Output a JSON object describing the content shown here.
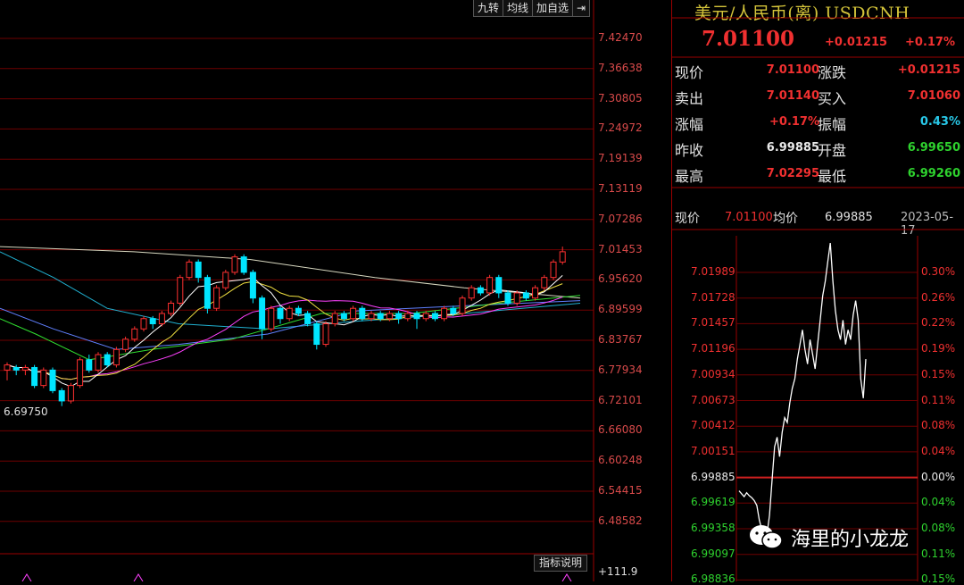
{
  "toolbar": {
    "items": [
      "九转",
      "均线",
      "加自选",
      "⇥"
    ]
  },
  "kline": {
    "y_ticks": [
      "7.42470",
      "7.36638",
      "7.30805",
      "7.24972",
      "7.19139",
      "7.13119",
      "7.07286",
      "7.01453",
      "6.95620",
      "6.89599",
      "6.83767",
      "6.77934",
      "6.72101",
      "6.66080",
      "6.60248",
      "6.54415",
      "6.48582"
    ],
    "low_label": "6.69750",
    "indicator_button": "指标说明",
    "indicator_value": "+111.9",
    "colors": {
      "up": "#ff3030",
      "down": "#00e5ff",
      "ma5": "#ffffff",
      "ma10": "#f0e040",
      "ma20": "#ff40ff",
      "ma30": "#30e030",
      "ma60": "#6080ff",
      "ma120": "#20b0d0",
      "ma250": "#d8d8c0"
    },
    "chart_data": {
      "type": "candlestick",
      "candles": [
        [
          6.78,
          6.79,
          6.76,
          6.795
        ],
        [
          6.785,
          6.78,
          6.77,
          6.79
        ],
        [
          6.78,
          6.785,
          6.77,
          6.79
        ],
        [
          6.785,
          6.75,
          6.745,
          6.79
        ],
        [
          6.75,
          6.78,
          6.745,
          6.785
        ],
        [
          6.78,
          6.74,
          6.735,
          6.785
        ],
        [
          6.74,
          6.72,
          6.71,
          6.745
        ],
        [
          6.72,
          6.75,
          6.715,
          6.755
        ],
        [
          6.75,
          6.8,
          6.745,
          6.805
        ],
        [
          6.8,
          6.78,
          6.775,
          6.81
        ],
        [
          6.78,
          6.81,
          6.775,
          6.815
        ],
        [
          6.81,
          6.79,
          6.785,
          6.815
        ],
        [
          6.79,
          6.82,
          6.785,
          6.825
        ],
        [
          6.82,
          6.84,
          6.815,
          6.845
        ],
        [
          6.84,
          6.86,
          6.835,
          6.865
        ],
        [
          6.86,
          6.88,
          6.855,
          6.885
        ],
        [
          6.88,
          6.87,
          6.86,
          6.885
        ],
        [
          6.87,
          6.89,
          6.865,
          6.895
        ],
        [
          6.89,
          6.91,
          6.885,
          6.915
        ],
        [
          6.91,
          6.96,
          6.905,
          6.965
        ],
        [
          6.96,
          6.99,
          6.955,
          6.995
        ],
        [
          6.99,
          6.96,
          6.95,
          6.995
        ],
        [
          6.96,
          6.9,
          6.89,
          6.965
        ],
        [
          6.9,
          6.94,
          6.895,
          6.945
        ],
        [
          6.94,
          6.97,
          6.935,
          6.975
        ],
        [
          6.97,
          7.0,
          6.965,
          7.005
        ],
        [
          7.0,
          6.97,
          6.965,
          7.005
        ],
        [
          6.97,
          6.92,
          6.91,
          6.975
        ],
        [
          6.92,
          6.86,
          6.84,
          6.925
        ],
        [
          6.86,
          6.9,
          6.855,
          6.905
        ],
        [
          6.9,
          6.88,
          6.87,
          6.905
        ],
        [
          6.88,
          6.9,
          6.875,
          6.905
        ],
        [
          6.9,
          6.89,
          6.885,
          6.905
        ],
        [
          6.89,
          6.87,
          6.865,
          6.895
        ],
        [
          6.87,
          6.83,
          6.82,
          6.875
        ],
        [
          6.83,
          6.87,
          6.825,
          6.875
        ],
        [
          6.87,
          6.89,
          6.865,
          6.895
        ],
        [
          6.89,
          6.88,
          6.875,
          6.895
        ],
        [
          6.88,
          6.9,
          6.875,
          6.905
        ],
        [
          6.9,
          6.88,
          6.875,
          6.905
        ],
        [
          6.88,
          6.89,
          6.875,
          6.895
        ],
        [
          6.89,
          6.88,
          6.875,
          6.895
        ],
        [
          6.88,
          6.89,
          6.875,
          6.895
        ],
        [
          6.89,
          6.88,
          6.87,
          6.895
        ],
        [
          6.88,
          6.89,
          6.875,
          6.895
        ],
        [
          6.89,
          6.88,
          6.86,
          6.895
        ],
        [
          6.88,
          6.89,
          6.875,
          6.895
        ],
        [
          6.89,
          6.88,
          6.875,
          6.895
        ],
        [
          6.88,
          6.9,
          6.875,
          6.905
        ],
        [
          6.9,
          6.89,
          6.885,
          6.905
        ],
        [
          6.89,
          6.92,
          6.885,
          6.925
        ],
        [
          6.92,
          6.94,
          6.915,
          6.945
        ],
        [
          6.94,
          6.93,
          6.925,
          6.945
        ],
        [
          6.93,
          6.96,
          6.925,
          6.965
        ],
        [
          6.96,
          6.93,
          6.92,
          6.965
        ],
        [
          6.93,
          6.91,
          6.905,
          6.935
        ],
        [
          6.91,
          6.93,
          6.905,
          6.935
        ],
        [
          6.93,
          6.92,
          6.915,
          6.935
        ],
        [
          6.92,
          6.94,
          6.915,
          6.945
        ],
        [
          6.94,
          6.96,
          6.935,
          6.965
        ],
        [
          6.96,
          6.99,
          6.955,
          6.995
        ],
        [
          6.99,
          7.01,
          6.985,
          7.02
        ]
      ],
      "note": "OHLC values [open, close, low, high] estimated from axis ticks"
    }
  },
  "quote": {
    "title": "美元/人民币(离) USDCNH",
    "price": "7.01100",
    "change": "+0.01215",
    "change_pct": "+0.17%",
    "rows": [
      {
        "l1": "现价",
        "v1": "7.01100",
        "c1": "red",
        "l2": "涨跌",
        "v2": "+0.01215",
        "c2": "red"
      },
      {
        "l1": "卖出",
        "v1": "7.01140",
        "c1": "red",
        "l2": "买入",
        "v2": "7.01060",
        "c2": "red"
      },
      {
        "l1": "涨幅",
        "v1": "+0.17%",
        "c1": "red",
        "l2": "振幅",
        "v2": "0.43%",
        "c2": "cyan"
      },
      {
        "l1": "昨收",
        "v1": "6.99885",
        "c1": "white",
        "l2": "开盘",
        "v2": "6.99650",
        "c2": "green"
      },
      {
        "l1": "最高",
        "v1": "7.02295",
        "c1": "red",
        "l2": "最低",
        "v2": "6.99260",
        "c2": "green"
      }
    ]
  },
  "intraday": {
    "now_label": "现价",
    "now_value": "7.01100",
    "avg_label": "均价",
    "avg_value": "6.99885",
    "date": "2023-05-17",
    "y_left": [
      "7.01989",
      "7.01728",
      "7.01457",
      "7.01196",
      "7.00934",
      "7.00673",
      "7.00412",
      "7.00151",
      "6.99885",
      "6.99619",
      "6.99358",
      "6.99097",
      "6.98836"
    ],
    "y_right": [
      "0.30%",
      "0.26%",
      "0.22%",
      "0.19%",
      "0.15%",
      "0.11%",
      "0.08%",
      "0.04%",
      "0.00%",
      "0.04%",
      "0.08%",
      "0.11%",
      "0.15%"
    ],
    "chart_data": {
      "type": "line",
      "y": [
        6.9975,
        6.9972,
        6.9969,
        6.9973,
        6.997,
        6.9968,
        6.9965,
        6.996,
        6.9945,
        6.9935,
        6.9928,
        6.993,
        6.995,
        6.9985,
        7.002,
        7.003,
        7.001,
        7.0035,
        7.005,
        7.0045,
        7.0065,
        7.008,
        7.009,
        7.011,
        7.0125,
        7.014,
        7.012,
        7.0105,
        7.013,
        7.0115,
        7.01,
        7.0125,
        7.015,
        7.0175,
        7.019,
        7.021,
        7.0229,
        7.019,
        7.016,
        7.014,
        7.013,
        7.015,
        7.0125,
        7.014,
        7.013,
        7.0155,
        7.017,
        7.015,
        7.009,
        7.007,
        7.011
      ],
      "prev_close": 6.99885
    }
  },
  "watermark": {
    "text": "海里的小龙龙"
  }
}
